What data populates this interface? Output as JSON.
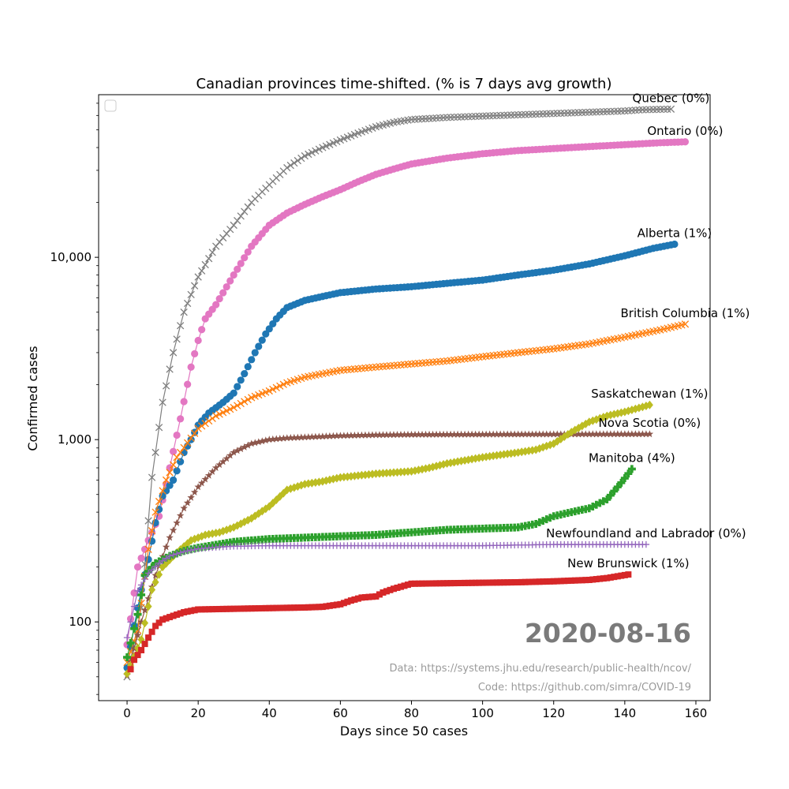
{
  "chart_data": {
    "type": "line",
    "title": "Canadian provinces time-shifted. (% is 7 days avg growth)",
    "xlabel": "Days since 50 cases",
    "ylabel": "Confirmed cases",
    "xlim": [
      -8,
      164
    ],
    "ylim": [
      37,
      78000
    ],
    "yscale": "log",
    "xticks": [
      0,
      20,
      40,
      60,
      80,
      100,
      120,
      140,
      160
    ],
    "xtick_labels": [
      "0",
      "20",
      "40",
      "60",
      "80",
      "100",
      "120",
      "140",
      "160"
    ],
    "yticks": [
      100,
      1000,
      10000
    ],
    "ytick_labels": [
      "100",
      "1,000",
      "10,000"
    ],
    "grid": false,
    "legend": "top-left (empty)",
    "date_label": "2020-08-16",
    "credits": [
      "Data: https://systems.jhu.edu/research/public-health/ncov/",
      "Code: https://github.com/simra/COVID-19"
    ],
    "series": [
      {
        "name": "Quebec (0%)",
        "color": "#7f7f7f",
        "marker": "x",
        "points": [
          [
            0,
            50
          ],
          [
            4,
            120
          ],
          [
            7,
            620
          ],
          [
            10,
            1600
          ],
          [
            13,
            3000
          ],
          [
            16,
            5000
          ],
          [
            20,
            7800
          ],
          [
            25,
            11500
          ],
          [
            30,
            15000
          ],
          [
            35,
            20000
          ],
          [
            40,
            25000
          ],
          [
            45,
            31000
          ],
          [
            50,
            36000
          ],
          [
            55,
            40000
          ],
          [
            60,
            44000
          ],
          [
            65,
            48000
          ],
          [
            70,
            52000
          ],
          [
            75,
            55000
          ],
          [
            80,
            57000
          ],
          [
            90,
            58500
          ],
          [
            100,
            59500
          ],
          [
            110,
            60500
          ],
          [
            120,
            61500
          ],
          [
            130,
            62500
          ],
          [
            140,
            63500
          ],
          [
            145,
            64500
          ],
          [
            153,
            65000
          ]
        ]
      },
      {
        "name": "Ontario (0%)",
        "color": "#e377c2",
        "marker": "o",
        "points": [
          [
            0,
            75
          ],
          [
            3,
            200
          ],
          [
            6,
            280
          ],
          [
            9,
            380
          ],
          [
            12,
            700
          ],
          [
            15,
            1300
          ],
          [
            18,
            2500
          ],
          [
            20,
            3500
          ],
          [
            22,
            4600
          ],
          [
            25,
            5500
          ],
          [
            30,
            8000
          ],
          [
            35,
            11500
          ],
          [
            40,
            15000
          ],
          [
            45,
            17500
          ],
          [
            50,
            19500
          ],
          [
            55,
            21500
          ],
          [
            60,
            23500
          ],
          [
            65,
            26000
          ],
          [
            70,
            28500
          ],
          [
            75,
            30500
          ],
          [
            80,
            32500
          ],
          [
            90,
            35000
          ],
          [
            100,
            37000
          ],
          [
            110,
            38500
          ],
          [
            120,
            39500
          ],
          [
            130,
            40500
          ],
          [
            140,
            41500
          ],
          [
            150,
            42500
          ],
          [
            157,
            43000
          ]
        ]
      },
      {
        "name": "Alberta (1%)",
        "color": "#1f77b4",
        "marker": "o",
        "points": [
          [
            0,
            56
          ],
          [
            2,
            95
          ],
          [
            4,
            150
          ],
          [
            6,
            220
          ],
          [
            8,
            350
          ],
          [
            10,
            490
          ],
          [
            13,
            600
          ],
          [
            16,
            850
          ],
          [
            18,
            1000
          ],
          [
            20,
            1200
          ],
          [
            23,
            1400
          ],
          [
            27,
            1600
          ],
          [
            30,
            1800
          ],
          [
            33,
            2300
          ],
          [
            36,
            3000
          ],
          [
            39,
            3800
          ],
          [
            42,
            4600
          ],
          [
            45,
            5300
          ],
          [
            50,
            5800
          ],
          [
            55,
            6100
          ],
          [
            60,
            6400
          ],
          [
            70,
            6700
          ],
          [
            80,
            6900
          ],
          [
            90,
            7200
          ],
          [
            100,
            7500
          ],
          [
            110,
            8000
          ],
          [
            120,
            8500
          ],
          [
            130,
            9200
          ],
          [
            140,
            10200
          ],
          [
            148,
            11200
          ],
          [
            154,
            11800
          ]
        ]
      },
      {
        "name": "British Columbia (1%)",
        "color": "#ff7f0e",
        "marker": "x",
        "points": [
          [
            0,
            60
          ],
          [
            3,
            90
          ],
          [
            6,
            250
          ],
          [
            8,
            400
          ],
          [
            11,
            600
          ],
          [
            14,
            800
          ],
          [
            17,
            960
          ],
          [
            20,
            1150
          ],
          [
            25,
            1350
          ],
          [
            30,
            1500
          ],
          [
            35,
            1700
          ],
          [
            40,
            1850
          ],
          [
            45,
            2050
          ],
          [
            50,
            2200
          ],
          [
            55,
            2300
          ],
          [
            60,
            2400
          ],
          [
            70,
            2500
          ],
          [
            80,
            2600
          ],
          [
            90,
            2700
          ],
          [
            100,
            2850
          ],
          [
            110,
            3000
          ],
          [
            120,
            3150
          ],
          [
            130,
            3350
          ],
          [
            140,
            3650
          ],
          [
            150,
            4000
          ],
          [
            157,
            4300
          ]
        ]
      },
      {
        "name": "Nova Scotia (0%)",
        "color": "#8c564b",
        "marker": "*",
        "points": [
          [
            0,
            51
          ],
          [
            4,
            100
          ],
          [
            8,
            180
          ],
          [
            12,
            290
          ],
          [
            16,
            420
          ],
          [
            20,
            550
          ],
          [
            25,
            700
          ],
          [
            30,
            850
          ],
          [
            35,
            950
          ],
          [
            40,
            1000
          ],
          [
            45,
            1020
          ],
          [
            50,
            1030
          ],
          [
            60,
            1050
          ],
          [
            70,
            1060
          ],
          [
            80,
            1065
          ],
          [
            100,
            1068
          ],
          [
            120,
            1070
          ],
          [
            147,
            1072
          ]
        ]
      },
      {
        "name": "Saskatchewan (1%)",
        "color": "#bcbd22",
        "marker": "D",
        "points": [
          [
            0,
            52
          ],
          [
            4,
            80
          ],
          [
            7,
            150
          ],
          [
            10,
            200
          ],
          [
            14,
            240
          ],
          [
            18,
            280
          ],
          [
            22,
            300
          ],
          [
            26,
            310
          ],
          [
            30,
            330
          ],
          [
            35,
            370
          ],
          [
            40,
            430
          ],
          [
            45,
            530
          ],
          [
            50,
            570
          ],
          [
            55,
            590
          ],
          [
            60,
            620
          ],
          [
            70,
            650
          ],
          [
            80,
            670
          ],
          [
            85,
            700
          ],
          [
            90,
            740
          ],
          [
            100,
            800
          ],
          [
            110,
            850
          ],
          [
            115,
            880
          ],
          [
            120,
            950
          ],
          [
            125,
            1100
          ],
          [
            130,
            1250
          ],
          [
            135,
            1350
          ],
          [
            140,
            1420
          ],
          [
            147,
            1550
          ]
        ]
      },
      {
        "name": "Manitoba (4%)",
        "color": "#2ca02c",
        "marker": "P",
        "points": [
          [
            0,
            64
          ],
          [
            3,
            110
          ],
          [
            5,
            180
          ],
          [
            8,
            210
          ],
          [
            12,
            230
          ],
          [
            16,
            245
          ],
          [
            20,
            255
          ],
          [
            25,
            265
          ],
          [
            30,
            275
          ],
          [
            40,
            285
          ],
          [
            50,
            290
          ],
          [
            60,
            295
          ],
          [
            70,
            300
          ],
          [
            80,
            310
          ],
          [
            90,
            320
          ],
          [
            100,
            325
          ],
          [
            110,
            330
          ],
          [
            115,
            345
          ],
          [
            120,
            380
          ],
          [
            125,
            400
          ],
          [
            130,
            420
          ],
          [
            135,
            470
          ],
          [
            139,
            580
          ],
          [
            142,
            690
          ]
        ]
      },
      {
        "name": "Newfoundland and Labrador (0%)",
        "color": "#9467bd",
        "marker": "+",
        "points": [
          [
            0,
            82
          ],
          [
            3,
            148
          ],
          [
            6,
            185
          ],
          [
            9,
            210
          ],
          [
            12,
            230
          ],
          [
            16,
            243
          ],
          [
            20,
            252
          ],
          [
            25,
            257
          ],
          [
            30,
            260
          ],
          [
            40,
            262
          ],
          [
            50,
            262
          ],
          [
            60,
            262
          ],
          [
            80,
            262
          ],
          [
            100,
            262
          ],
          [
            120,
            266
          ],
          [
            146,
            266
          ]
        ]
      },
      {
        "name": "New Brunswick (1%)",
        "color": "#d62728",
        "marker": "s",
        "points": [
          [
            1,
            55
          ],
          [
            2,
            62
          ],
          [
            4,
            70
          ],
          [
            6,
            82
          ],
          [
            8,
            95
          ],
          [
            10,
            103
          ],
          [
            13,
            108
          ],
          [
            16,
            113
          ],
          [
            20,
            117
          ],
          [
            30,
            118
          ],
          [
            40,
            119
          ],
          [
            50,
            120
          ],
          [
            55,
            121
          ],
          [
            60,
            125
          ],
          [
            63,
            131
          ],
          [
            66,
            136
          ],
          [
            70,
            138
          ],
          [
            72,
            145
          ],
          [
            75,
            152
          ],
          [
            80,
            162
          ],
          [
            90,
            163
          ],
          [
            100,
            164
          ],
          [
            110,
            165
          ],
          [
            120,
            167
          ],
          [
            130,
            170
          ],
          [
            135,
            174
          ],
          [
            141,
            182
          ]
        ]
      }
    ],
    "labels": [
      {
        "series": 0,
        "text": "Quebec (0%)"
      },
      {
        "series": 1,
        "text": "Ontario (0%)"
      },
      {
        "series": 2,
        "text": "Alberta (1%)"
      },
      {
        "series": 3,
        "text": "British Columbia (1%)"
      },
      {
        "series": 5,
        "text": "Saskatchewan (1%)"
      },
      {
        "series": 4,
        "text": "Nova Scotia (0%)"
      },
      {
        "series": 6,
        "text": "Manitoba (4%)"
      },
      {
        "series": 7,
        "text": "Newfoundland and Labrador (0%)"
      },
      {
        "series": 8,
        "text": "New Brunswick (1%)"
      }
    ]
  }
}
